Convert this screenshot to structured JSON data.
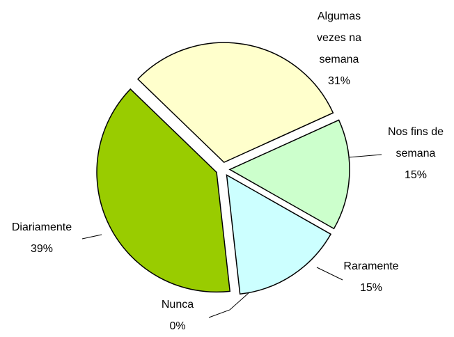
{
  "chart_data": {
    "type": "pie",
    "categories": [
      "Algumas vezes na semana",
      "Nos fins de semana",
      "Raramente",
      "Nunca",
      "Diariamente"
    ],
    "values": [
      31,
      15,
      15,
      0,
      39
    ],
    "value_labels": [
      "31%",
      "15%",
      "15%",
      "0%",
      "39%"
    ],
    "colors": [
      "#FFFFCC",
      "#CCFFCC",
      "#CCFFFF",
      "#FFFFFF",
      "#99CC00"
    ]
  }
}
